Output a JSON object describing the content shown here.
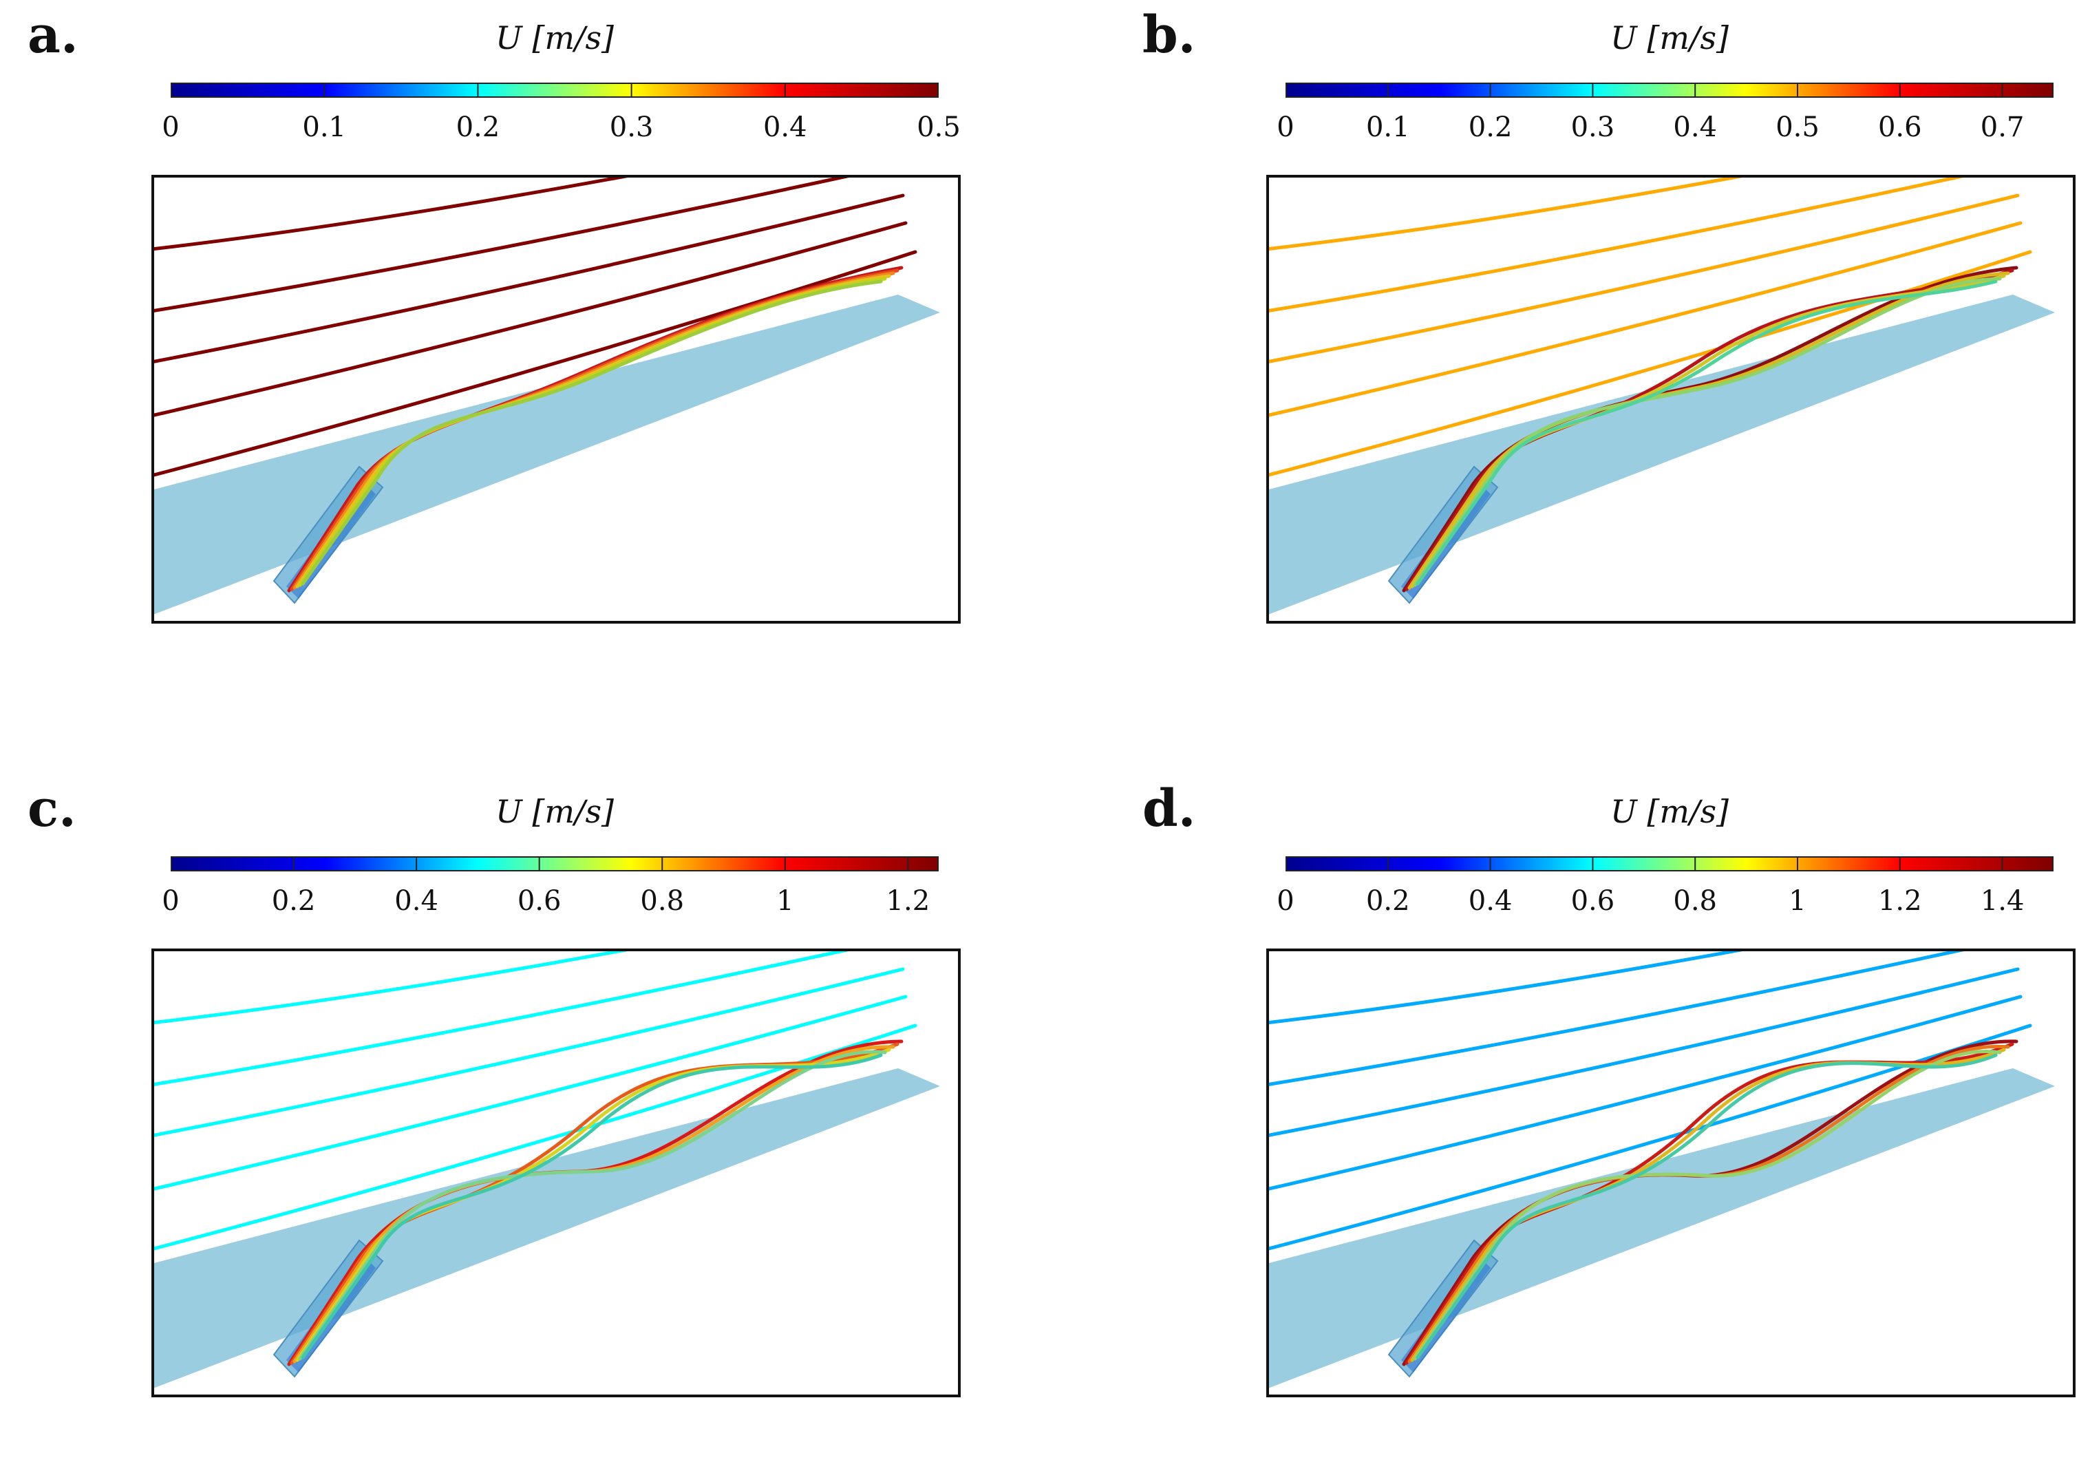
{
  "colormap": [
    "#00008f",
    "#0000ff",
    "#00ffff",
    "#ffff00",
    "#ff0000",
    "#800000"
  ],
  "colors": {
    "plate": "#9bcde0",
    "frame": "#111111"
  },
  "panels": [
    {
      "label": "a.",
      "colorbar_title": "U [m/s]",
      "colorbar_max": 0.5,
      "ticks": [
        "0",
        "0.1",
        "0.2",
        "0.3",
        "0.4",
        "0.5"
      ],
      "tick_values": [
        0,
        0.1,
        0.2,
        0.3,
        0.4,
        0.5
      ],
      "freestream_speed": 0.5,
      "jet_colors": [
        "#c8161c",
        "#e34a1a",
        "#f08a1e",
        "#e6c21c",
        "#c4d21c",
        "#9dcc3c"
      ]
    },
    {
      "label": "b.",
      "colorbar_title": "U [m/s]",
      "colorbar_max": 0.75,
      "ticks": [
        "0",
        "0.1",
        "0.2",
        "0.3",
        "0.4",
        "0.5",
        "0.6",
        "0.7"
      ],
      "tick_values": [
        0,
        0.1,
        0.2,
        0.3,
        0.4,
        0.5,
        0.6,
        0.7
      ],
      "freestream_speed": 0.5,
      "jet_colors": [
        "#8b0e12",
        "#b8151a",
        "#d9b81e",
        "#cfc72a",
        "#8ed26a",
        "#4fd39a"
      ]
    },
    {
      "label": "c.",
      "colorbar_title": "U [m/s]",
      "colorbar_max": 1.25,
      "ticks": [
        "0",
        "0.2",
        "0.4",
        "0.6",
        "0.8",
        "1",
        "1.2"
      ],
      "tick_values": [
        0,
        0.2,
        0.4,
        0.6,
        0.8,
        1,
        1.2
      ],
      "freestream_speed": 0.5,
      "jet_colors": [
        "#d81a18",
        "#e85a1a",
        "#f0a21e",
        "#d7d321",
        "#7fd28c",
        "#40c9a8"
      ]
    },
    {
      "label": "d.",
      "colorbar_title": "U [m/s]",
      "colorbar_max": 1.5,
      "ticks": [
        "0",
        "0.2",
        "0.4",
        "0.6",
        "0.8",
        "1",
        "1.2",
        "1.4"
      ],
      "tick_values": [
        0,
        0.2,
        0.4,
        0.6,
        0.8,
        1,
        1.2,
        1.4
      ],
      "freestream_speed": 0.5,
      "jet_colors": [
        "#9b1014",
        "#cc1c18",
        "#e8761a",
        "#e0b61e",
        "#96d26c",
        "#46c9a4"
      ]
    }
  ]
}
